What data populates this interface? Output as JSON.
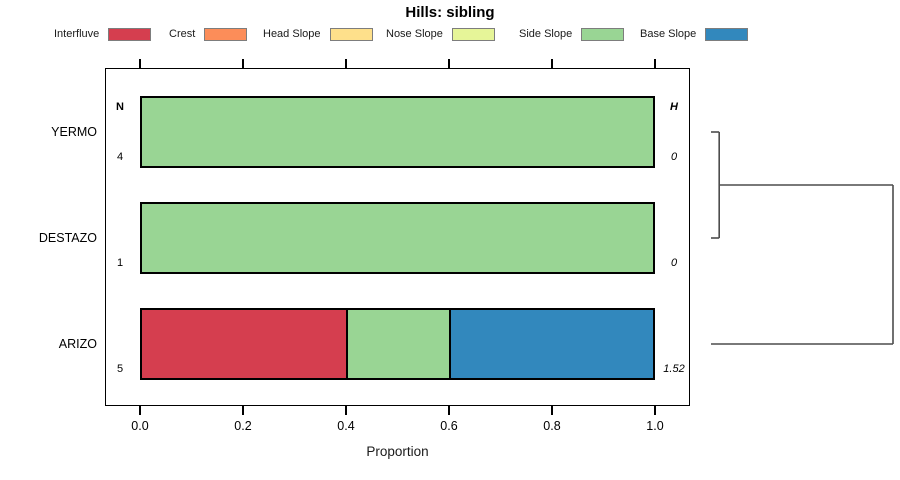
{
  "chart_data": {
    "type": "bar",
    "variant": "horizontal-stacked-proportion",
    "title": "Hills: sibling",
    "xlabel": "Proportion",
    "xlim": [
      0,
      1
    ],
    "x_ticks": [
      "0.0",
      "0.2",
      "0.4",
      "0.6",
      "0.8",
      "1.0"
    ],
    "grid": "off",
    "legend_position": "top",
    "categories": [
      "YERMO",
      "DESTAZO",
      "ARIZO"
    ],
    "series": [
      {
        "name": "Interfluve",
        "color": "#D53E4F",
        "values": [
          0,
          0,
          0.4
        ]
      },
      {
        "name": "Crest",
        "color": "#FC8D59",
        "values": [
          0,
          0,
          0
        ]
      },
      {
        "name": "Head Slope",
        "color": "#FEE08B",
        "values": [
          0,
          0,
          0
        ]
      },
      {
        "name": "Nose Slope",
        "color": "#E6F598",
        "values": [
          0,
          0,
          0
        ]
      },
      {
        "name": "Side Slope",
        "color": "#99D594",
        "values": [
          1,
          1,
          0.2
        ]
      },
      {
        "name": "Base Slope",
        "color": "#3288BD",
        "values": [
          0,
          0,
          0.4
        ]
      }
    ],
    "annotations": {
      "n_header": "N",
      "h_header": "H",
      "n_values": [
        "4",
        "1",
        "5"
      ],
      "h_values": [
        "0",
        "0",
        "1.52"
      ]
    },
    "dendrogram": {
      "side": "right",
      "line_color": "#4d4d4d",
      "merges": [
        {
          "members": [
            "YERMO",
            "DESTAZO"
          ],
          "height_frac": 0.045
        },
        {
          "members": [
            "YERMO+DESTAZO",
            "ARIZO"
          ],
          "height_frac": 1.0
        }
      ]
    }
  }
}
